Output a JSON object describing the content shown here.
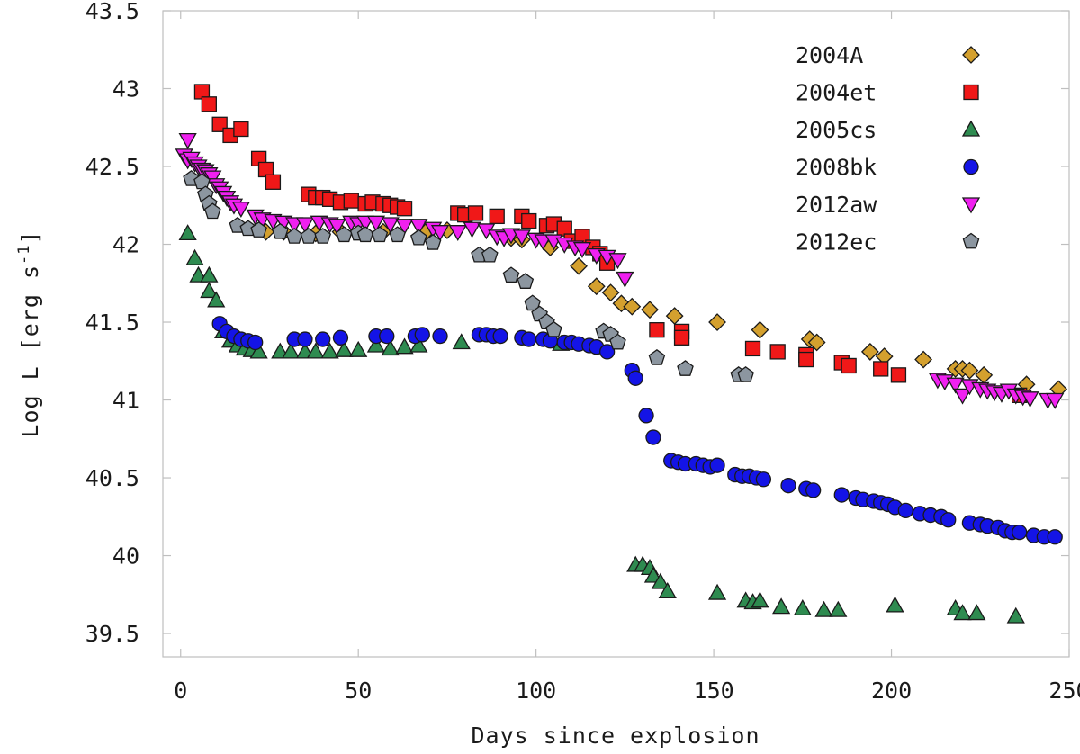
{
  "chart_data": {
    "type": "scatter",
    "title": "",
    "xlabel": "Days since explosion",
    "ylabel": "Log L [erg s",
    "ylabel_exponent": "-1",
    "ylabel_close": "]",
    "xlim": [
      -5,
      250
    ],
    "ylim": [
      39.35,
      43.5
    ],
    "xticks": [
      0,
      50,
      100,
      150,
      200,
      250
    ],
    "yticks": [
      39.5,
      40,
      40.5,
      41,
      41.5,
      42,
      42.5,
      43,
      43.5
    ],
    "ytick_labels": [
      "39.5",
      "40",
      "40.5",
      "41",
      "41.5",
      "42",
      "42.5",
      "43",
      "43.5"
    ],
    "legend_position": "top-right",
    "series": [
      {
        "name": "2004A",
        "marker": "diamond",
        "color": "#D4A02E",
        "points": [
          [
            24,
            42.08
          ],
          [
            29,
            42.08
          ],
          [
            38,
            42.07
          ],
          [
            45,
            42.08
          ],
          [
            57,
            42.08
          ],
          [
            69,
            42.08
          ],
          [
            75,
            42.09
          ],
          [
            93,
            42.04
          ],
          [
            96,
            42.03
          ],
          [
            104,
            41.98
          ],
          [
            112,
            41.86
          ],
          [
            117,
            41.73
          ],
          [
            121,
            41.69
          ],
          [
            124,
            41.62
          ],
          [
            127,
            41.6
          ],
          [
            132,
            41.58
          ],
          [
            139,
            41.54
          ],
          [
            151,
            41.5
          ],
          [
            163,
            41.45
          ],
          [
            177,
            41.39
          ],
          [
            179,
            41.37
          ],
          [
            194,
            41.31
          ],
          [
            198,
            41.28
          ],
          [
            209,
            41.26
          ],
          [
            218,
            41.2
          ],
          [
            220,
            41.2
          ],
          [
            222,
            41.19
          ],
          [
            226,
            41.16
          ],
          [
            238,
            41.1
          ],
          [
            247,
            41.07
          ]
        ]
      },
      {
        "name": "2004et",
        "marker": "square",
        "color": "#F01818",
        "points": [
          [
            6,
            42.98
          ],
          [
            8,
            42.9
          ],
          [
            11,
            42.77
          ],
          [
            14,
            42.7
          ],
          [
            17,
            42.74
          ],
          [
            22,
            42.55
          ],
          [
            24,
            42.48
          ],
          [
            26,
            42.4
          ],
          [
            36,
            42.32
          ],
          [
            38,
            42.3
          ],
          [
            40,
            42.3
          ],
          [
            42,
            42.29
          ],
          [
            45,
            42.27
          ],
          [
            48,
            42.28
          ],
          [
            52,
            42.26
          ],
          [
            54,
            42.27
          ],
          [
            57,
            42.26
          ],
          [
            59,
            42.25
          ],
          [
            61,
            42.24
          ],
          [
            63,
            42.23
          ],
          [
            78,
            42.2
          ],
          [
            80,
            42.19
          ],
          [
            83,
            42.2
          ],
          [
            89,
            42.18
          ],
          [
            96,
            42.18
          ],
          [
            98,
            42.15
          ],
          [
            103,
            42.12
          ],
          [
            105,
            42.13
          ],
          [
            108,
            42.1
          ],
          [
            110,
            42.02
          ],
          [
            113,
            42.05
          ],
          [
            116,
            41.98
          ],
          [
            118,
            41.94
          ],
          [
            120,
            41.88
          ],
          [
            134,
            41.45
          ],
          [
            141,
            41.44
          ],
          [
            141,
            41.4
          ],
          [
            161,
            41.33
          ],
          [
            168,
            41.31
          ],
          [
            176,
            41.29
          ],
          [
            176,
            41.26
          ],
          [
            186,
            41.24
          ],
          [
            188,
            41.22
          ],
          [
            197,
            41.2
          ],
          [
            202,
            41.16
          ],
          [
            236,
            41.03
          ]
        ]
      },
      {
        "name": "2005cs",
        "marker": "triangle-up",
        "color": "#2E8B50",
        "points": [
          [
            2,
            42.07
          ],
          [
            4,
            41.91
          ],
          [
            5,
            41.8
          ],
          [
            8,
            41.8
          ],
          [
            8,
            41.7
          ],
          [
            10,
            41.64
          ],
          [
            12,
            41.44
          ],
          [
            14,
            41.38
          ],
          [
            16,
            41.35
          ],
          [
            18,
            41.33
          ],
          [
            20,
            41.32
          ],
          [
            22,
            41.31
          ],
          [
            28,
            41.31
          ],
          [
            31,
            41.31
          ],
          [
            35,
            41.31
          ],
          [
            38,
            41.31
          ],
          [
            42,
            41.31
          ],
          [
            46,
            41.32
          ],
          [
            50,
            41.32
          ],
          [
            55,
            41.35
          ],
          [
            59,
            41.33
          ],
          [
            63,
            41.34
          ],
          [
            67,
            41.35
          ],
          [
            79,
            41.37
          ],
          [
            107,
            41.36
          ],
          [
            128,
            39.94
          ],
          [
            130,
            39.94
          ],
          [
            132,
            39.92
          ],
          [
            133,
            39.87
          ],
          [
            135,
            39.83
          ],
          [
            137,
            39.77
          ],
          [
            151,
            39.76
          ],
          [
            159,
            39.71
          ],
          [
            161,
            39.7
          ],
          [
            163,
            39.71
          ],
          [
            169,
            39.67
          ],
          [
            175,
            39.66
          ],
          [
            181,
            39.65
          ],
          [
            185,
            39.65
          ],
          [
            201,
            39.68
          ],
          [
            218,
            39.66
          ],
          [
            220,
            39.63
          ],
          [
            224,
            39.63
          ],
          [
            235,
            39.61
          ]
        ]
      },
      {
        "name": "2008bk",
        "marker": "circle",
        "color": "#1414E6",
        "points": [
          [
            11,
            41.49
          ],
          [
            13,
            41.44
          ],
          [
            15,
            41.41
          ],
          [
            17,
            41.39
          ],
          [
            19,
            41.38
          ],
          [
            21,
            41.37
          ],
          [
            32,
            41.39
          ],
          [
            35,
            41.39
          ],
          [
            40,
            41.39
          ],
          [
            45,
            41.4
          ],
          [
            55,
            41.41
          ],
          [
            58,
            41.41
          ],
          [
            66,
            41.41
          ],
          [
            68,
            41.42
          ],
          [
            73,
            41.41
          ],
          [
            84,
            41.42
          ],
          [
            86,
            41.42
          ],
          [
            88,
            41.41
          ],
          [
            90,
            41.41
          ],
          [
            96,
            41.4
          ],
          [
            98,
            41.39
          ],
          [
            102,
            41.39
          ],
          [
            104,
            41.38
          ],
          [
            108,
            41.37
          ],
          [
            110,
            41.37
          ],
          [
            112,
            41.36
          ],
          [
            115,
            41.35
          ],
          [
            117,
            41.34
          ],
          [
            120,
            41.31
          ],
          [
            127,
            41.19
          ],
          [
            128,
            41.14
          ],
          [
            131,
            40.9
          ],
          [
            133,
            40.76
          ],
          [
            138,
            40.61
          ],
          [
            140,
            40.6
          ],
          [
            142,
            40.59
          ],
          [
            145,
            40.59
          ],
          [
            147,
            40.58
          ],
          [
            149,
            40.57
          ],
          [
            151,
            40.58
          ],
          [
            156,
            40.52
          ],
          [
            158,
            40.51
          ],
          [
            160,
            40.51
          ],
          [
            162,
            40.5
          ],
          [
            164,
            40.49
          ],
          [
            171,
            40.45
          ],
          [
            176,
            40.43
          ],
          [
            178,
            40.42
          ],
          [
            186,
            40.39
          ],
          [
            190,
            40.37
          ],
          [
            192,
            40.36
          ],
          [
            195,
            40.35
          ],
          [
            197,
            40.34
          ],
          [
            199,
            40.33
          ],
          [
            201,
            40.31
          ],
          [
            204,
            40.29
          ],
          [
            208,
            40.27
          ],
          [
            211,
            40.26
          ],
          [
            214,
            40.25
          ],
          [
            216,
            40.23
          ],
          [
            222,
            40.21
          ],
          [
            225,
            40.2
          ],
          [
            227,
            40.19
          ],
          [
            230,
            40.18
          ],
          [
            232,
            40.16
          ],
          [
            234,
            40.15
          ],
          [
            236,
            40.15
          ],
          [
            240,
            40.13
          ],
          [
            243,
            40.12
          ],
          [
            246,
            40.12
          ]
        ]
      },
      {
        "name": "2012aw",
        "marker": "triangle-down",
        "color": "#F020F0",
        "points": [
          [
            2,
            42.67
          ],
          [
            1,
            42.57
          ],
          [
            2,
            42.54
          ],
          [
            3,
            42.55
          ],
          [
            4,
            42.52
          ],
          [
            5,
            42.5
          ],
          [
            6,
            42.48
          ],
          [
            7,
            42.47
          ],
          [
            8,
            42.45
          ],
          [
            9,
            42.43
          ],
          [
            10,
            42.38
          ],
          [
            11,
            42.36
          ],
          [
            12,
            42.33
          ],
          [
            13,
            42.3
          ],
          [
            14,
            42.27
          ],
          [
            15,
            42.25
          ],
          [
            17,
            42.23
          ],
          [
            21,
            42.18
          ],
          [
            23,
            42.16
          ],
          [
            26,
            42.15
          ],
          [
            29,
            42.14
          ],
          [
            32,
            42.13
          ],
          [
            35,
            42.13
          ],
          [
            39,
            42.14
          ],
          [
            42,
            42.13
          ],
          [
            44,
            42.12
          ],
          [
            48,
            42.14
          ],
          [
            50,
            42.13
          ],
          [
            52,
            42.14
          ],
          [
            55,
            42.14
          ],
          [
            59,
            42.13
          ],
          [
            63,
            42.12
          ],
          [
            67,
            42.12
          ],
          [
            71,
            42.1
          ],
          [
            73,
            42.08
          ],
          [
            78,
            42.08
          ],
          [
            82,
            42.1
          ],
          [
            86,
            42.09
          ],
          [
            89,
            42.05
          ],
          [
            91,
            42.04
          ],
          [
            93,
            42.06
          ],
          [
            96,
            42.05
          ],
          [
            100,
            42.03
          ],
          [
            102,
            42.02
          ],
          [
            105,
            42.02
          ],
          [
            108,
            42.0
          ],
          [
            111,
            41.98
          ],
          [
            113,
            41.97
          ],
          [
            117,
            41.93
          ],
          [
            120,
            41.92
          ],
          [
            123,
            41.9
          ],
          [
            125,
            41.78
          ],
          [
            213,
            41.13
          ],
          [
            215,
            41.12
          ],
          [
            218,
            41.1
          ],
          [
            220,
            41.03
          ],
          [
            222,
            41.09
          ],
          [
            225,
            41.07
          ],
          [
            227,
            41.06
          ],
          [
            229,
            41.05
          ],
          [
            231,
            41.04
          ],
          [
            233,
            41.06
          ],
          [
            235,
            41.03
          ],
          [
            237,
            41.02
          ],
          [
            239,
            41.01
          ],
          [
            244,
            41.0
          ],
          [
            246,
            41.0
          ]
        ]
      },
      {
        "name": "2012ec",
        "marker": "pentagon",
        "color": "#8C96A0",
        "points": [
          [
            3,
            42.42
          ],
          [
            6,
            42.4
          ],
          [
            7,
            42.32
          ],
          [
            8,
            42.26
          ],
          [
            9,
            42.21
          ],
          [
            16,
            42.12
          ],
          [
            19,
            42.1
          ],
          [
            22,
            42.09
          ],
          [
            28,
            42.08
          ],
          [
            32,
            42.05
          ],
          [
            36,
            42.05
          ],
          [
            40,
            42.05
          ],
          [
            46,
            42.06
          ],
          [
            50,
            42.07
          ],
          [
            52,
            42.06
          ],
          [
            56,
            42.06
          ],
          [
            61,
            42.06
          ],
          [
            67,
            42.04
          ],
          [
            71,
            42.01
          ],
          [
            84,
            41.93
          ],
          [
            87,
            41.93
          ],
          [
            93,
            41.8
          ],
          [
            97,
            41.76
          ],
          [
            99,
            41.62
          ],
          [
            101,
            41.55
          ],
          [
            103,
            41.5
          ],
          [
            105,
            41.45
          ],
          [
            119,
            41.44
          ],
          [
            121,
            41.42
          ],
          [
            123,
            41.37
          ],
          [
            134,
            41.27
          ],
          [
            142,
            41.2
          ],
          [
            157,
            41.16
          ],
          [
            159,
            41.16
          ]
        ]
      }
    ]
  }
}
